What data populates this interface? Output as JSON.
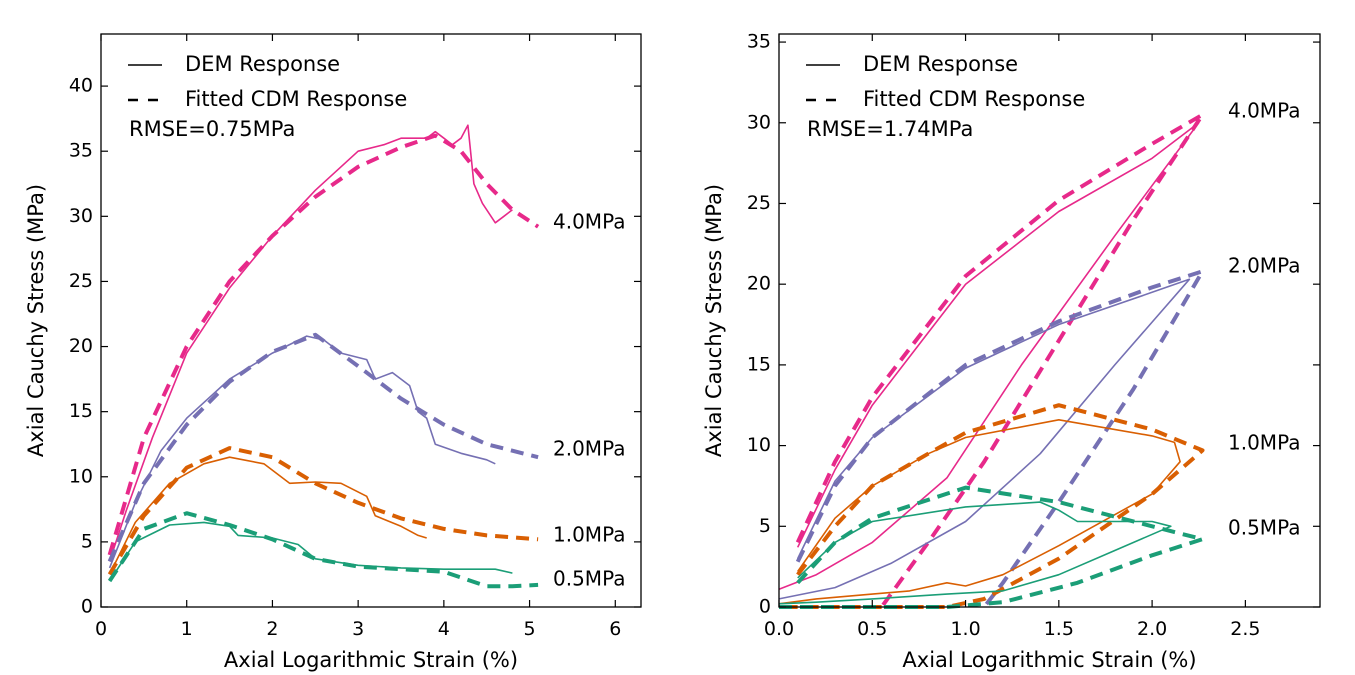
{
  "chart_data": [
    {
      "type": "line",
      "xlabel": "Axial Logarithmic Strain (%)",
      "ylabel": "Axial Cauchy Stress (MPa)",
      "xlim": [
        0,
        6.3
      ],
      "ylim": [
        0,
        44
      ],
      "xticks": [
        0,
        1,
        2,
        3,
        4,
        5,
        6
      ],
      "yticks": [
        0,
        5,
        10,
        15,
        20,
        25,
        30,
        35,
        40
      ],
      "legend": {
        "position": "top-left",
        "entries": [
          "DEM Response",
          "Fitted CDM Response"
        ],
        "note": "RMSE=0.75MPa"
      },
      "series": [
        {
          "name": "4.0MPa",
          "color": "#e7298a",
          "dem": [
            [
              0.1,
              3.5
            ],
            [
              0.3,
              7.5
            ],
            [
              0.6,
              13
            ],
            [
              1.0,
              19.5
            ],
            [
              1.5,
              24.5
            ],
            [
              2.0,
              28.5
            ],
            [
              2.5,
              32
            ],
            [
              3.0,
              35
            ],
            [
              3.3,
              35.5
            ],
            [
              3.5,
              36
            ],
            [
              3.8,
              36
            ],
            [
              3.9,
              36.5
            ],
            [
              4.0,
              36
            ],
            [
              4.1,
              35.5
            ],
            [
              4.2,
              36
            ],
            [
              4.28,
              37
            ],
            [
              4.35,
              32.5
            ],
            [
              4.45,
              31
            ],
            [
              4.6,
              29.5
            ],
            [
              4.7,
              30
            ],
            [
              4.8,
              30.5
            ]
          ],
          "cdm": [
            [
              0.1,
              4
            ],
            [
              0.5,
              13
            ],
            [
              1.0,
              20
            ],
            [
              1.5,
              25
            ],
            [
              2.0,
              28.5
            ],
            [
              2.5,
              31.5
            ],
            [
              3.0,
              33.8
            ],
            [
              3.5,
              35.3
            ],
            [
              3.9,
              36.2
            ],
            [
              4.2,
              35
            ],
            [
              4.5,
              32.5
            ],
            [
              4.8,
              30.5
            ],
            [
              5.1,
              29.2
            ]
          ]
        },
        {
          "name": "2.0MPa",
          "color": "#7570b3",
          "dem": [
            [
              0.1,
              3
            ],
            [
              0.4,
              8
            ],
            [
              0.7,
              12
            ],
            [
              1.0,
              14.5
            ],
            [
              1.5,
              17.5
            ],
            [
              2.0,
              19.5
            ],
            [
              2.4,
              20.8
            ],
            [
              2.6,
              20.5
            ],
            [
              2.8,
              19.5
            ],
            [
              3.1,
              19
            ],
            [
              3.2,
              17.5
            ],
            [
              3.4,
              18
            ],
            [
              3.6,
              17
            ],
            [
              3.7,
              15
            ],
            [
              3.8,
              14.5
            ],
            [
              3.9,
              12.5
            ],
            [
              4.2,
              11.8
            ],
            [
              4.5,
              11.3
            ],
            [
              4.6,
              11
            ]
          ],
          "cdm": [
            [
              0.1,
              3.5
            ],
            [
              0.5,
              9.5
            ],
            [
              1.0,
              14
            ],
            [
              1.5,
              17.3
            ],
            [
              2.0,
              19.6
            ],
            [
              2.5,
              20.9
            ],
            [
              3.0,
              18.5
            ],
            [
              3.5,
              16
            ],
            [
              4.0,
              14
            ],
            [
              4.5,
              12.5
            ],
            [
              5.1,
              11.5
            ]
          ]
        },
        {
          "name": "1.0MPa",
          "color": "#d95f02",
          "dem": [
            [
              0.1,
              2.5
            ],
            [
              0.4,
              6.5
            ],
            [
              0.8,
              9.5
            ],
            [
              1.2,
              11
            ],
            [
              1.5,
              11.5
            ],
            [
              1.9,
              11
            ],
            [
              2.2,
              9.5
            ],
            [
              2.5,
              9.6
            ],
            [
              2.8,
              9.5
            ],
            [
              3.1,
              8.5
            ],
            [
              3.2,
              7
            ],
            [
              3.5,
              6.2
            ],
            [
              3.7,
              5.5
            ],
            [
              3.8,
              5.3
            ]
          ],
          "cdm": [
            [
              0.1,
              2.5
            ],
            [
              0.5,
              7
            ],
            [
              1.0,
              10.7
            ],
            [
              1.5,
              12.2
            ],
            [
              2.0,
              11.5
            ],
            [
              2.5,
              9.5
            ],
            [
              3.0,
              8
            ],
            [
              3.5,
              6.8
            ],
            [
              4.0,
              6
            ],
            [
              4.5,
              5.5
            ],
            [
              5.1,
              5.2
            ]
          ]
        },
        {
          "name": "0.5MPa",
          "color": "#1b9e77",
          "dem": [
            [
              0.1,
              2
            ],
            [
              0.4,
              5
            ],
            [
              0.8,
              6.3
            ],
            [
              1.2,
              6.5
            ],
            [
              1.5,
              6.2
            ],
            [
              1.6,
              5.5
            ],
            [
              2.0,
              5.3
            ],
            [
              2.3,
              4.8
            ],
            [
              2.5,
              3.7
            ],
            [
              3.0,
              3.2
            ],
            [
              3.5,
              3
            ],
            [
              4.0,
              2.9
            ],
            [
              4.3,
              2.9
            ],
            [
              4.6,
              2.9
            ],
            [
              4.8,
              2.6
            ]
          ],
          "cdm": [
            [
              0.1,
              2
            ],
            [
              0.5,
              6
            ],
            [
              1.0,
              7.2
            ],
            [
              1.5,
              6.3
            ],
            [
              2.0,
              5.2
            ],
            [
              2.5,
              3.7
            ],
            [
              3.0,
              3.1
            ],
            [
              3.5,
              2.9
            ],
            [
              4.0,
              2.7
            ],
            [
              4.5,
              1.6
            ],
            [
              4.8,
              1.6
            ],
            [
              5.1,
              1.7
            ]
          ]
        }
      ]
    },
    {
      "type": "line",
      "xlabel": "Axial Logarithmic Strain (%)",
      "ylabel": "Axial Cauchy Stress (MPa)",
      "xlim": [
        0,
        2.9
      ],
      "ylim": [
        0,
        35.5
      ],
      "xticks": [
        0.0,
        0.5,
        1.0,
        1.5,
        2.0,
        2.5
      ],
      "xticklabels": [
        "0.0",
        "0.5",
        "1.0",
        "1.5",
        "2.0",
        "2.5"
      ],
      "yticks": [
        0,
        5,
        10,
        15,
        20,
        25,
        30,
        35
      ],
      "legend": {
        "position": "top-left",
        "entries": [
          "DEM Response",
          "Fitted CDM Response"
        ],
        "note": "RMSE=1.74MPa"
      },
      "series": [
        {
          "name": "4.0MPa",
          "color": "#e7298a",
          "dem": [
            [
              0.1,
              3.7
            ],
            [
              0.3,
              8.5
            ],
            [
              0.5,
              12.5
            ],
            [
              0.8,
              17
            ],
            [
              1.0,
              20
            ],
            [
              1.5,
              24.5
            ],
            [
              2.0,
              27.8
            ],
            [
              2.25,
              30
            ],
            [
              1.8,
              23
            ],
            [
              1.3,
              15
            ],
            [
              0.9,
              8
            ],
            [
              0.5,
              4
            ],
            [
              0.2,
              2
            ],
            [
              0.0,
              1.1
            ]
          ],
          "cdm": [
            [
              0.1,
              4
            ],
            [
              0.3,
              9
            ],
            [
              0.5,
              13
            ],
            [
              0.8,
              17.5
            ],
            [
              1.0,
              20.5
            ],
            [
              1.5,
              25.2
            ],
            [
              2.0,
              28.7
            ],
            [
              2.27,
              30.5
            ],
            [
              1.9,
              24
            ],
            [
              1.5,
              16.5
            ],
            [
              1.1,
              9
            ],
            [
              0.8,
              4
            ],
            [
              0.55,
              0
            ]
          ]
        },
        {
          "name": "2.0MPa",
          "color": "#7570b3",
          "dem": [
            [
              0.1,
              3
            ],
            [
              0.3,
              7.8
            ],
            [
              0.5,
              10.5
            ],
            [
              1.0,
              14.8
            ],
            [
              1.5,
              17.5
            ],
            [
              2.0,
              19.5
            ],
            [
              2.2,
              20.3
            ],
            [
              1.8,
              15
            ],
            [
              1.4,
              9.5
            ],
            [
              1.0,
              5.3
            ],
            [
              0.6,
              2.7
            ],
            [
              0.3,
              1.2
            ],
            [
              0.0,
              0.5
            ]
          ],
          "cdm": [
            [
              0.1,
              2.8
            ],
            [
              0.3,
              7.5
            ],
            [
              0.5,
              10.5
            ],
            [
              1.0,
              15
            ],
            [
              1.5,
              17.7
            ],
            [
              2.0,
              19.8
            ],
            [
              2.27,
              20.8
            ],
            [
              1.9,
              13.5
            ],
            [
              1.5,
              6.5
            ],
            [
              1.2,
              1.5
            ],
            [
              1.1,
              0
            ]
          ]
        },
        {
          "name": "1.0MPa",
          "color": "#d95f02",
          "dem": [
            [
              0.1,
              2.2
            ],
            [
              0.3,
              5.5
            ],
            [
              0.5,
              7.5
            ],
            [
              0.8,
              9.5
            ],
            [
              1.0,
              10.5
            ],
            [
              1.5,
              11.6
            ],
            [
              2.0,
              10.6
            ],
            [
              2.12,
              10.2
            ],
            [
              2.15,
              9
            ],
            [
              2.0,
              7
            ],
            [
              1.5,
              3.8
            ],
            [
              1.2,
              2
            ],
            [
              1.0,
              1.3
            ],
            [
              0.9,
              1.5
            ],
            [
              0.7,
              1
            ],
            [
              0.5,
              0.8
            ],
            [
              0.2,
              0.5
            ],
            [
              0.0,
              0.2
            ]
          ],
          "cdm": [
            [
              0.1,
              2
            ],
            [
              0.3,
              5
            ],
            [
              0.5,
              7.5
            ],
            [
              0.8,
              9.5
            ],
            [
              1.0,
              10.8
            ],
            [
              1.5,
              12.5
            ],
            [
              2.0,
              11
            ],
            [
              2.27,
              9.7
            ],
            [
              2.0,
              7
            ],
            [
              1.5,
              3
            ],
            [
              1.1,
              0.5
            ],
            [
              0.9,
              0
            ],
            [
              0.0,
              0
            ]
          ]
        },
        {
          "name": "0.5MPa",
          "color": "#1b9e77",
          "dem": [
            [
              0.1,
              1.8
            ],
            [
              0.3,
              4
            ],
            [
              0.5,
              5.3
            ],
            [
              1.0,
              6.2
            ],
            [
              1.4,
              6.5
            ],
            [
              1.5,
              6
            ],
            [
              1.6,
              5.3
            ],
            [
              2.0,
              5.3
            ],
            [
              2.1,
              5
            ],
            [
              1.8,
              3.5
            ],
            [
              1.5,
              2
            ],
            [
              1.2,
              1
            ],
            [
              0.9,
              0.8
            ],
            [
              0.5,
              0.5
            ],
            [
              0.2,
              0.3
            ],
            [
              0.0,
              0.2
            ]
          ],
          "cdm": [
            [
              0.1,
              1.5
            ],
            [
              0.3,
              4
            ],
            [
              0.5,
              5.5
            ],
            [
              1.0,
              7.4
            ],
            [
              1.5,
              6.5
            ],
            [
              2.0,
              5
            ],
            [
              2.27,
              4.2
            ],
            [
              2.0,
              3.2
            ],
            [
              1.6,
              1.5
            ],
            [
              1.2,
              0.3
            ],
            [
              0.9,
              0
            ],
            [
              0.0,
              0
            ]
          ]
        }
      ]
    }
  ]
}
